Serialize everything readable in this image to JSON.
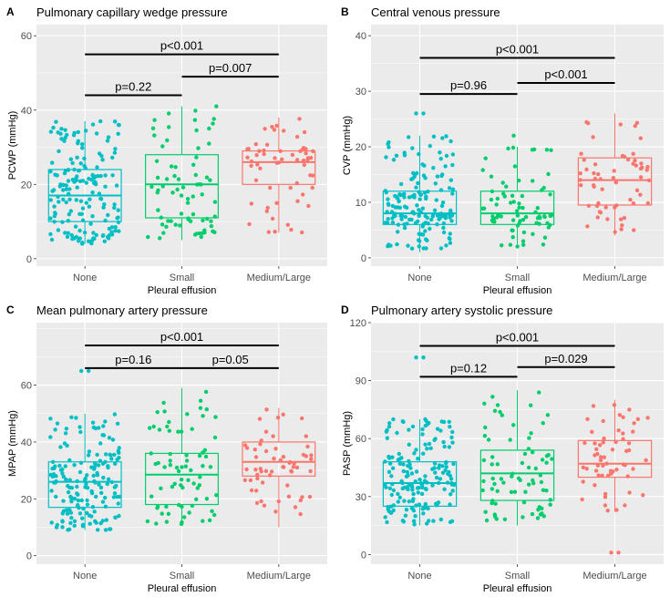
{
  "chart_data": [
    {
      "type": "boxplot",
      "letter": "A",
      "title": "Pulmonary capillary wedge pressure",
      "ylabel": "PCWP (mmHg)",
      "xlabel": "Pleural effusion",
      "categories": [
        "None",
        "Small",
        "Medium/Large"
      ],
      "ylim": [
        -2,
        63
      ],
      "yticks": [
        0,
        20,
        40,
        60
      ],
      "ytick_labels": [
        "0",
        "20",
        "40",
        "60"
      ],
      "boxes": [
        {
          "group": "None",
          "min": 4,
          "q1": 10,
          "median": 17,
          "q3": 24,
          "max": 37,
          "n": 170
        },
        {
          "group": "Small",
          "min": 5,
          "q1": 11,
          "median": 20,
          "q3": 28,
          "max": 41,
          "n": 75
        },
        {
          "group": "Medium/Large",
          "min": 7,
          "q1": 20,
          "median": 26,
          "q3": 29,
          "max": 38,
          "n": 60
        }
      ],
      "outliers": [],
      "comparisons": [
        {
          "from": "None",
          "to": "Small",
          "y": 44,
          "label": "p=0.22"
        },
        {
          "from": "Small",
          "to": "Medium/Large",
          "y": 49,
          "label": "p=0.007"
        },
        {
          "from": "None",
          "to": "Medium/Large",
          "y": 55,
          "label": "p<0.001"
        }
      ]
    },
    {
      "type": "boxplot",
      "letter": "B",
      "title": "Central venous pressure",
      "ylabel": "CVP (mmHg)",
      "xlabel": "Pleural effusion",
      "categories": [
        "None",
        "Small",
        "Medium/Large"
      ],
      "ylim": [
        -1.5,
        42
      ],
      "yticks": [
        0,
        10,
        20,
        30,
        40
      ],
      "ytick_labels": [
        "0",
        "10",
        "20",
        "30",
        "40"
      ],
      "boxes": [
        {
          "group": "None",
          "min": 1,
          "q1": 6,
          "median": 8,
          "q3": 12,
          "max": 22,
          "n": 170
        },
        {
          "group": "Small",
          "min": 2,
          "q1": 6,
          "median": 8,
          "q3": 12,
          "max": 20,
          "n": 75
        },
        {
          "group": "Medium/Large",
          "min": 4,
          "q1": 9.5,
          "median": 14,
          "q3": 18,
          "max": 26,
          "n": 60
        }
      ],
      "outliers": [
        {
          "group": "None",
          "values": [
            26,
            26
          ]
        },
        {
          "group": "Small",
          "values": [
            22
          ]
        }
      ],
      "comparisons": [
        {
          "from": "None",
          "to": "Small",
          "y": 29.5,
          "label": "p=0.96"
        },
        {
          "from": "Small",
          "to": "Medium/Large",
          "y": 31.5,
          "label": "p<0.001"
        },
        {
          "from": "None",
          "to": "Medium/Large",
          "y": 36,
          "label": "p<0.001"
        }
      ]
    },
    {
      "type": "boxplot",
      "letter": "C",
      "title": "Mean pulmonary artery pressure",
      "ylabel": "MPAP (mmHg)",
      "xlabel": "Pleural effusion",
      "categories": [
        "None",
        "Small",
        "Medium/Large"
      ],
      "ylim": [
        -3,
        82
      ],
      "yticks": [
        0,
        20,
        40,
        60
      ],
      "ytick_labels": [
        "0",
        "20",
        "40",
        "60"
      ],
      "boxes": [
        {
          "group": "None",
          "min": 9,
          "q1": 17,
          "median": 26,
          "q3": 33,
          "max": 50,
          "n": 170
        },
        {
          "group": "Small",
          "min": 11,
          "q1": 18,
          "median": 28.5,
          "q3": 36,
          "max": 59,
          "n": 75
        },
        {
          "group": "Medium/Large",
          "min": 10,
          "q1": 28,
          "median": 33,
          "q3": 40,
          "max": 52,
          "n": 60
        }
      ],
      "outliers": [
        {
          "group": "None",
          "values": [
            65,
            65
          ]
        }
      ],
      "comparisons": [
        {
          "from": "None",
          "to": "Small",
          "y": 66,
          "label": "p=0.16"
        },
        {
          "from": "Small",
          "to": "Medium/Large",
          "y": 66,
          "label": "p=0.05"
        },
        {
          "from": "None",
          "to": "Medium/Large",
          "y": 74,
          "label": "p<0.001"
        }
      ]
    },
    {
      "type": "boxplot",
      "letter": "D",
      "title": "Pulmonary artery systolic pressure",
      "ylabel": "PASP (mmHg)",
      "xlabel": "Pleural effusion",
      "categories": [
        "None",
        "Small",
        "Medium/Large"
      ],
      "ylim": [
        -5,
        120
      ],
      "yticks": [
        0,
        30,
        60,
        90,
        120
      ],
      "ytick_labels": [
        "0",
        "30",
        "60",
        "90",
        "120"
      ],
      "boxes": [
        {
          "group": "None",
          "min": 15,
          "q1": 25,
          "median": 37,
          "q3": 48,
          "max": 70,
          "n": 170
        },
        {
          "group": "Small",
          "min": 15,
          "q1": 28,
          "median": 42,
          "q3": 54,
          "max": 85,
          "n": 75
        },
        {
          "group": "Medium/Large",
          "min": 22,
          "q1": 40,
          "median": 47,
          "q3": 59,
          "max": 80,
          "n": 60
        }
      ],
      "outliers": [
        {
          "group": "None",
          "values": [
            102,
            102
          ]
        },
        {
          "group": "Medium/Large",
          "values": [
            1,
            1
          ]
        }
      ],
      "comparisons": [
        {
          "from": "None",
          "to": "Small",
          "y": 92,
          "label": "p=0.12"
        },
        {
          "from": "Small",
          "to": "Medium/Large",
          "y": 97,
          "label": "p=0.029"
        },
        {
          "from": "None",
          "to": "Medium/Large",
          "y": 108,
          "label": "p<0.001"
        }
      ]
    }
  ],
  "colors": {
    "None": "#00BFC4",
    "Small": "#00CD6C",
    "Medium/Large": "#F8766D",
    "panel_bg": "#EBEBEB",
    "grid": "#FFFFFF",
    "tick_text": "#4D4D4D"
  }
}
